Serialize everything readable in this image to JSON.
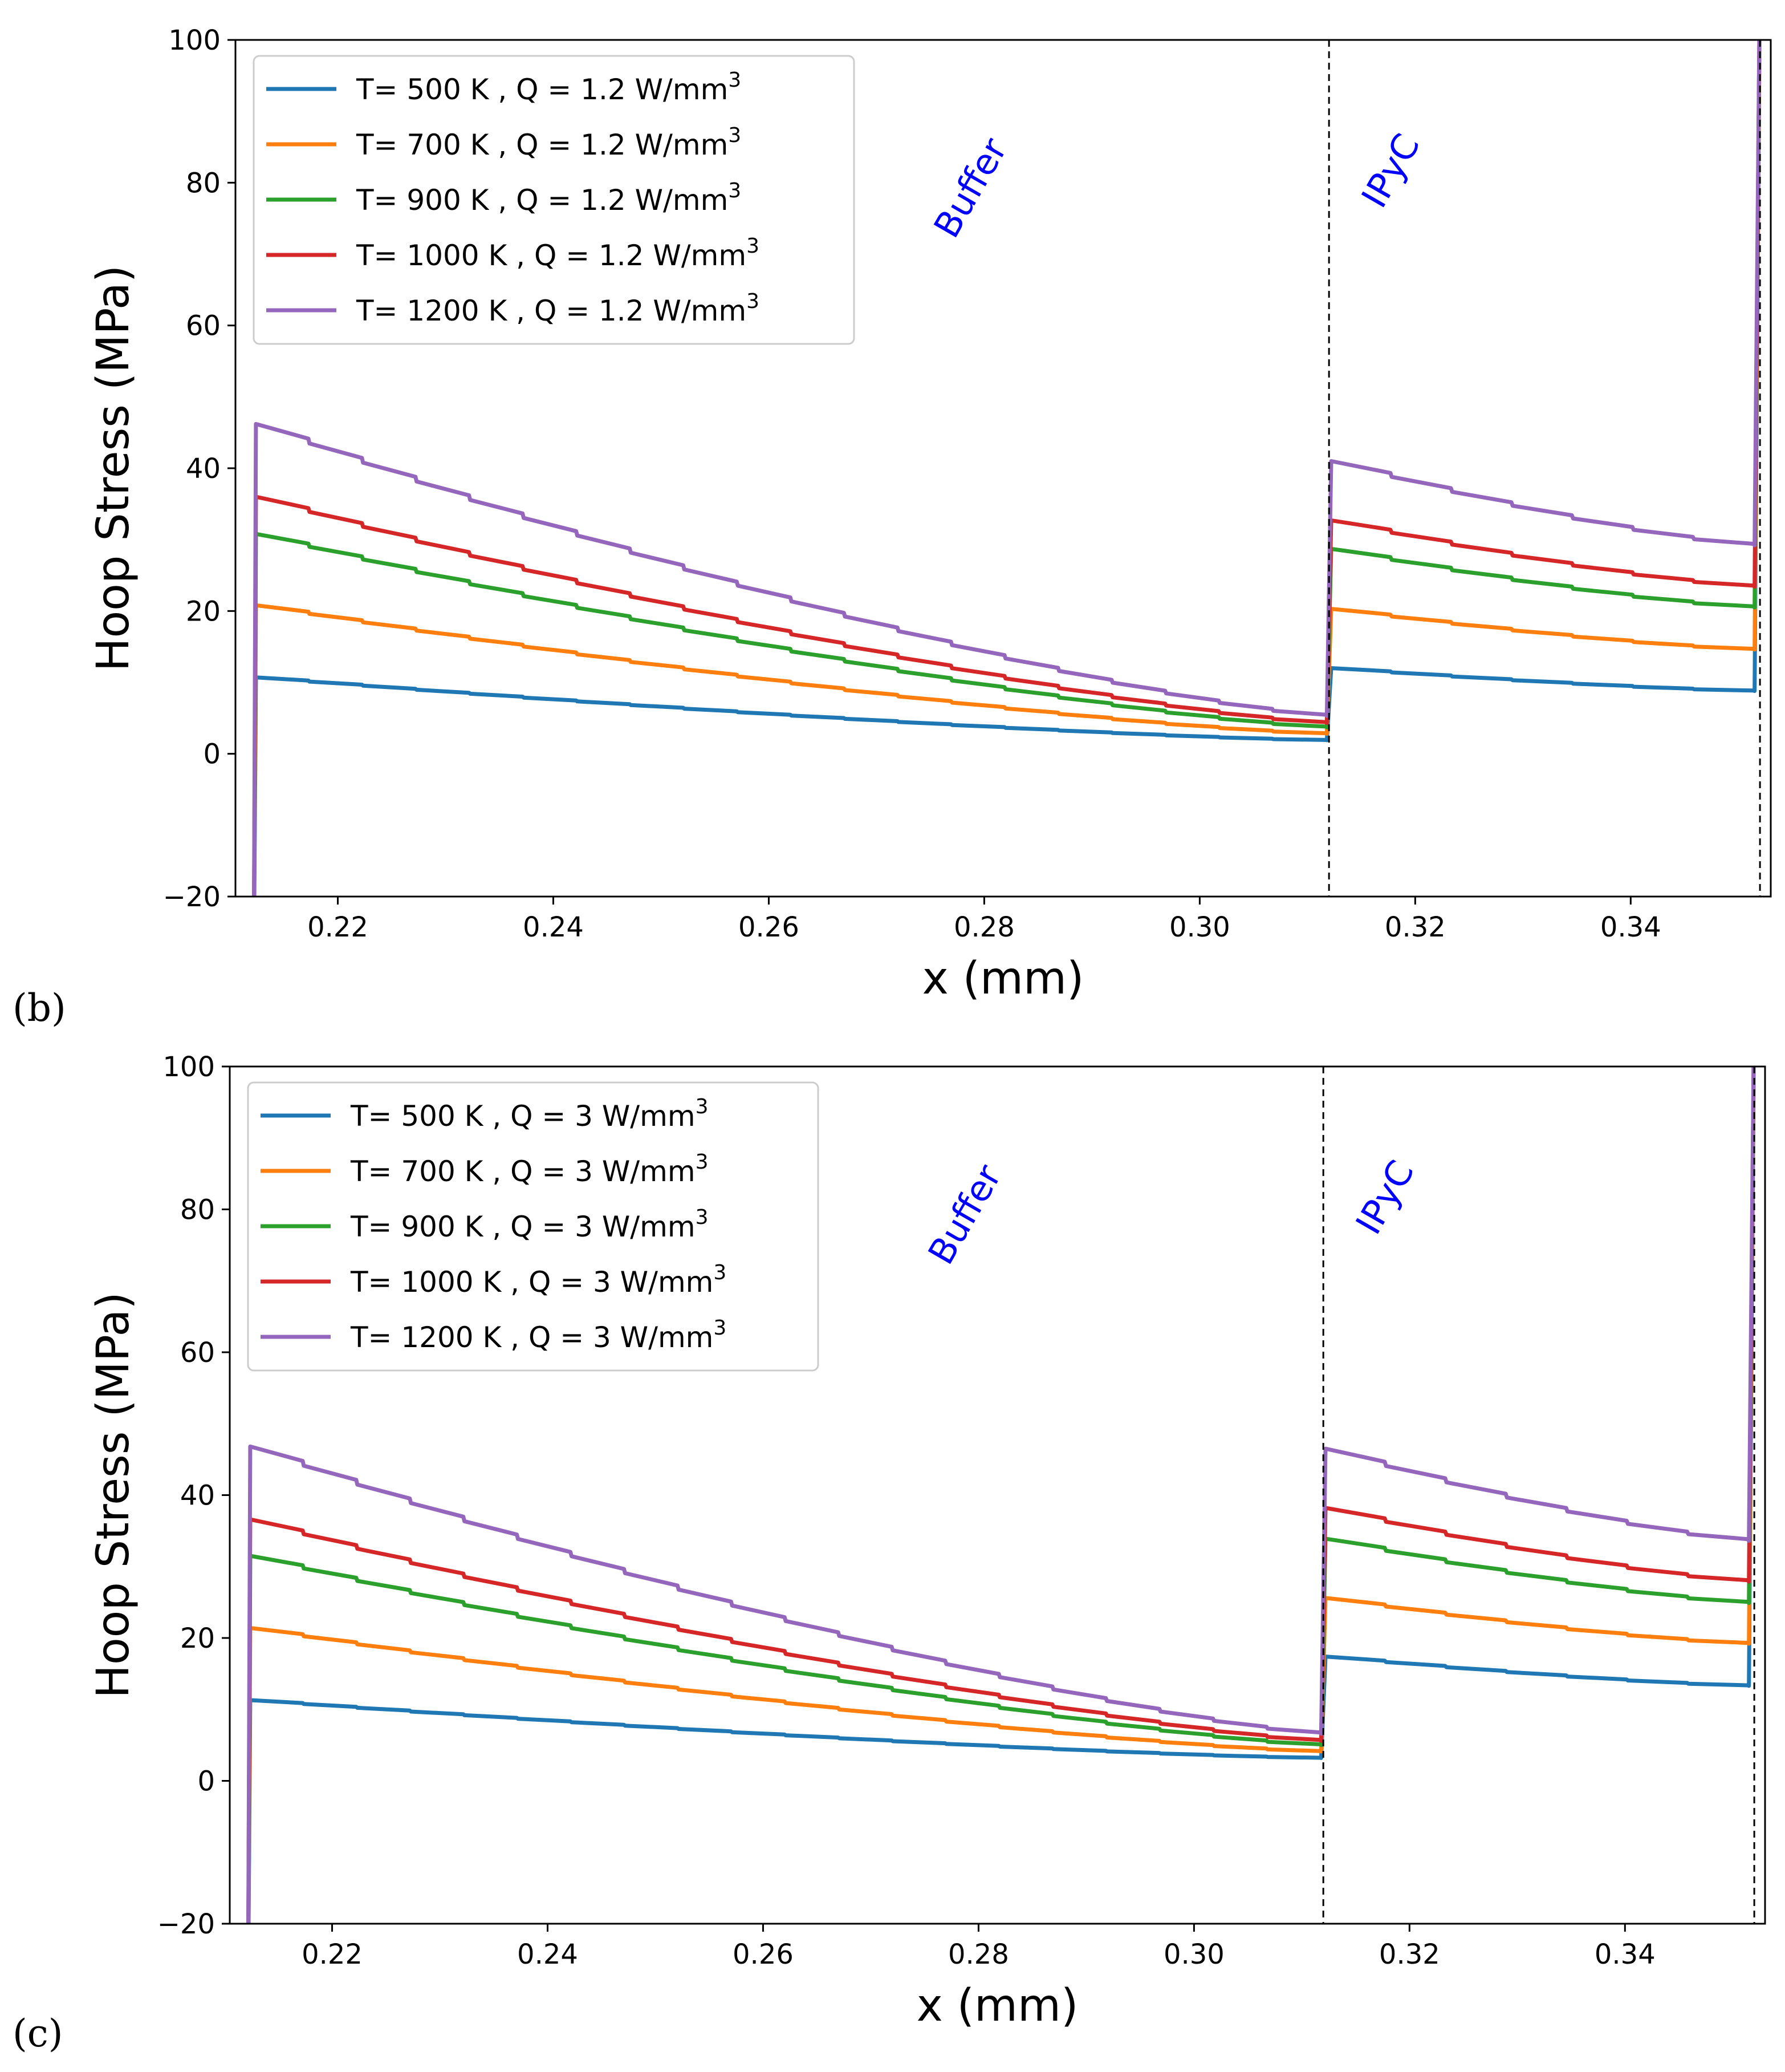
{
  "chart_data": [
    {
      "panel": "(b)",
      "type": "line",
      "xlabel": "x (mm)",
      "ylabel": "Hoop Stress (MPa)",
      "xlim": [
        0.2105,
        0.353
      ],
      "ylim": [
        -20,
        100
      ],
      "xticks": [
        "0.22",
        "0.24",
        "0.26",
        "0.28",
        "0.30",
        "0.32",
        "0.34"
      ],
      "yticks": [
        "−20",
        "0",
        "20",
        "40",
        "60",
        "80",
        "100"
      ],
      "region_labels": [
        "Buffer",
        "IPyC"
      ],
      "interfaces": [
        0.312,
        0.352
      ],
      "legend_placement": "top-left",
      "series": [
        {
          "name": "T= 500 K , Q = 1.2 W/mm",
          "sup": "3",
          "color": "#1f77b4",
          "buffer": [
            10.7,
            1.9
          ],
          "ipyc": [
            12.0,
            8.8
          ]
        },
        {
          "name": "T= 700 K , Q = 1.2 W/mm",
          "sup": "3",
          "color": "#ff7f0e",
          "buffer": [
            20.8,
            2.8
          ],
          "ipyc": [
            20.3,
            14.6
          ]
        },
        {
          "name": "T= 900 K , Q = 1.2 W/mm",
          "sup": "3",
          "color": "#2ca02c",
          "buffer": [
            30.8,
            3.7
          ],
          "ipyc": [
            28.7,
            20.5
          ]
        },
        {
          "name": "T= 1000 K , Q = 1.2 W/mm",
          "sup": "3",
          "color": "#d62728",
          "buffer": [
            36.0,
            4.3
          ],
          "ipyc": [
            32.7,
            23.4
          ]
        },
        {
          "name": "T= 1200 K , Q = 1.2 W/mm",
          "sup": "3",
          "color": "#9467bd",
          "buffer": [
            46.2,
            5.3
          ],
          "ipyc": [
            41.0,
            29.2
          ]
        }
      ]
    },
    {
      "panel": "(c)",
      "type": "line",
      "xlabel": "x (mm)",
      "ylabel": "Hoop Stress (MPa)",
      "xlim": [
        0.2105,
        0.353
      ],
      "ylim": [
        -20,
        100
      ],
      "xticks": [
        "0.22",
        "0.24",
        "0.26",
        "0.28",
        "0.30",
        "0.32",
        "0.34"
      ],
      "yticks": [
        "−20",
        "0",
        "20",
        "40",
        "60",
        "80",
        "100"
      ],
      "region_labels": [
        "Buffer",
        "IPyC"
      ],
      "interfaces": [
        0.312,
        0.352
      ],
      "legend_placement": "top-left",
      "series": [
        {
          "name": "T= 500 K , Q = 3 W/mm",
          "sup": "3",
          "color": "#1f77b4",
          "buffer": [
            11.3,
            3.2
          ],
          "ipyc": [
            17.4,
            13.3
          ]
        },
        {
          "name": "T= 700 K , Q = 3 W/mm",
          "sup": "3",
          "color": "#ff7f0e",
          "buffer": [
            21.4,
            4.1
          ],
          "ipyc": [
            25.6,
            19.2
          ]
        },
        {
          "name": "T= 900 K , Q = 3 W/mm",
          "sup": "3",
          "color": "#2ca02c",
          "buffer": [
            31.5,
            5.0
          ],
          "ipyc": [
            33.9,
            24.9
          ]
        },
        {
          "name": "T= 1000 K , Q = 3 W/mm",
          "sup": "3",
          "color": "#d62728",
          "buffer": [
            36.6,
            5.6
          ],
          "ipyc": [
            38.2,
            27.9
          ]
        },
        {
          "name": "T= 1200 K , Q = 3 W/mm",
          "sup": "3",
          "color": "#9467bd",
          "buffer": [
            46.8,
            6.6
          ],
          "ipyc": [
            46.5,
            33.6
          ]
        }
      ]
    }
  ]
}
